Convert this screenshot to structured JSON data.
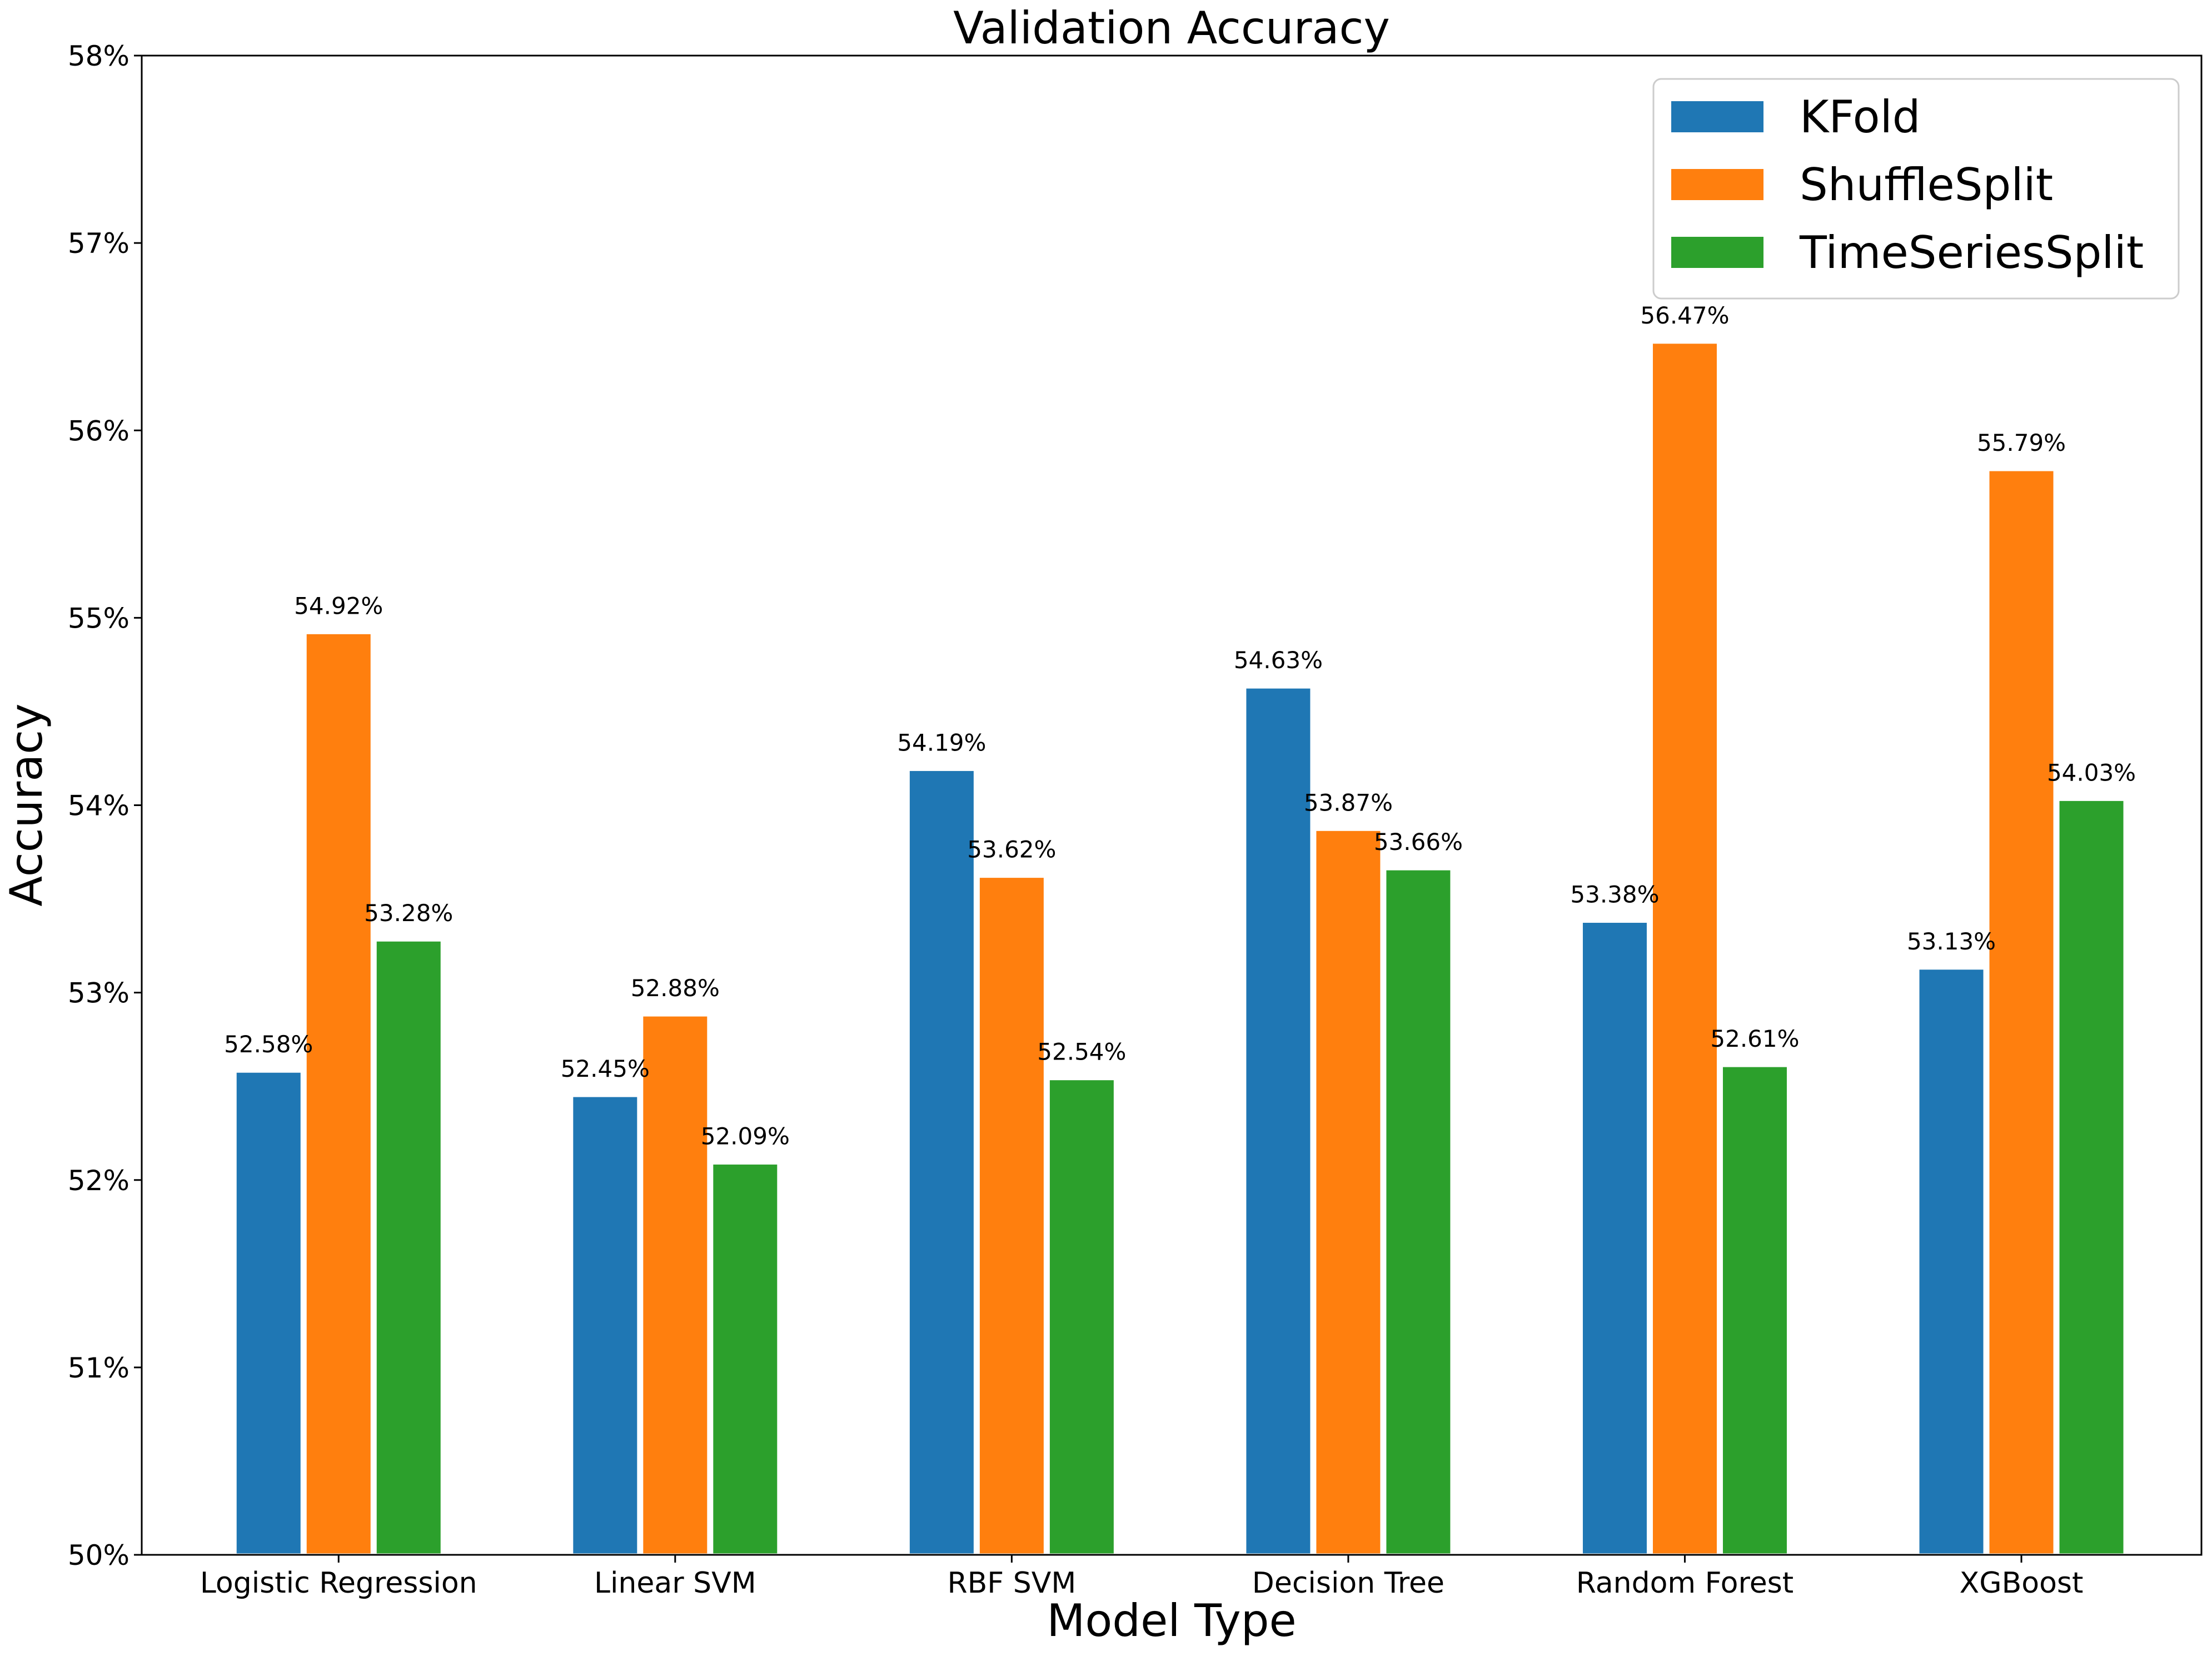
{
  "chart_data": {
    "type": "bar",
    "title": "Validation Accuracy",
    "xlabel": "Model Type",
    "ylabel": "Accuracy",
    "ylim": [
      50,
      58
    ],
    "yticks": [
      50,
      51,
      52,
      53,
      54,
      55,
      56,
      57,
      58
    ],
    "ytick_labels": [
      "50%",
      "51%",
      "52%",
      "53%",
      "54%",
      "55%",
      "56%",
      "57%",
      "58%"
    ],
    "grid": false,
    "legend_position": "top-right",
    "categories": [
      "Logistic Regression",
      "Linear SVM",
      "RBF SVM",
      "Decision Tree",
      "Random Forest",
      "XGBoost"
    ],
    "series": [
      {
        "name": "KFold",
        "color": "#1f77b4",
        "values": [
          52.58,
          52.45,
          54.19,
          54.63,
          53.38,
          53.13
        ],
        "labels": [
          "52.58%",
          "52.45%",
          "54.19%",
          "54.63%",
          "53.38%",
          "53.13%"
        ]
      },
      {
        "name": "ShuffleSplit",
        "color": "#ff7f0e",
        "values": [
          54.92,
          52.88,
          53.62,
          53.87,
          56.47,
          55.79
        ],
        "labels": [
          "54.92%",
          "52.88%",
          "53.62%",
          "53.87%",
          "56.47%",
          "55.79%"
        ]
      },
      {
        "name": "TimeSeriesSplit",
        "color": "#2ca02c",
        "values": [
          53.28,
          52.09,
          52.54,
          53.66,
          52.61,
          54.03
        ],
        "labels": [
          "53.28%",
          "52.09%",
          "52.54%",
          "53.66%",
          "52.61%",
          "54.03%"
        ]
      }
    ]
  }
}
